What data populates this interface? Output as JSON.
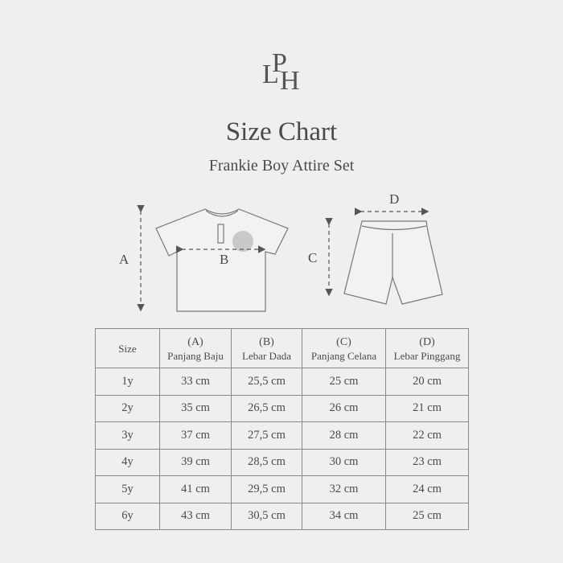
{
  "logo": {
    "letters": [
      "L",
      "P",
      "H"
    ]
  },
  "header": {
    "title": "Size Chart",
    "subtitle": "Frankie Boy Attire Set"
  },
  "diagram": {
    "labels": {
      "a": "A",
      "b": "B",
      "c": "C",
      "d": "D"
    }
  },
  "table": {
    "size_header": "Size",
    "columns": [
      {
        "code": "(A)",
        "label": "Panjang Baju"
      },
      {
        "code": "(B)",
        "label": "Lebar Dada"
      },
      {
        "code": "(C)",
        "label": "Panjang Celana"
      },
      {
        "code": "(D)",
        "label": "Lebar Pinggang"
      }
    ],
    "rows": [
      {
        "size": "1y",
        "values": [
          "33 cm",
          "25,5 cm",
          "25 cm",
          "20 cm"
        ]
      },
      {
        "size": "2y",
        "values": [
          "35 cm",
          "26,5 cm",
          "26 cm",
          "21 cm"
        ]
      },
      {
        "size": "3y",
        "values": [
          "37 cm",
          "27,5 cm",
          "28 cm",
          "22 cm"
        ]
      },
      {
        "size": "4y",
        "values": [
          "39 cm",
          "28,5 cm",
          "30 cm",
          "23 cm"
        ]
      },
      {
        "size": "5y",
        "values": [
          "41 cm",
          "29,5 cm",
          "32 cm",
          "24 cm"
        ]
      },
      {
        "size": "6y",
        "values": [
          "43 cm",
          "30,5 cm",
          "34 cm",
          "25 cm"
        ]
      }
    ]
  }
}
